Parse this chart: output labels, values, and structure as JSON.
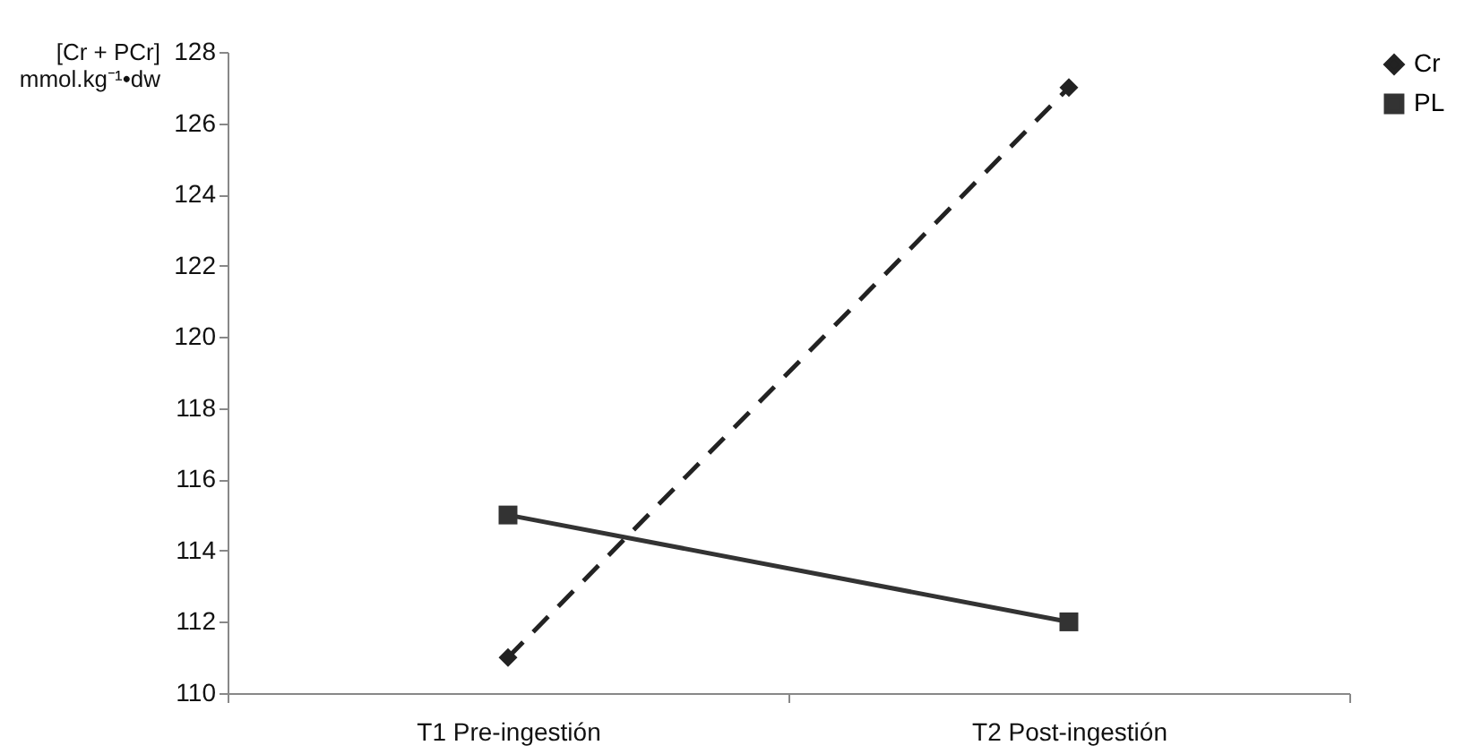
{
  "chart_data": {
    "type": "line",
    "ylabel": "[Cr + PCr]\nmmol.kg⁻¹•dw",
    "categories": [
      "T1 Pre-ingestión",
      "T2 Post-ingestión"
    ],
    "series": [
      {
        "name": "Cr",
        "color": "#222222",
        "values": [
          111,
          127
        ],
        "marker": "diamond",
        "line_style": "dashed"
      },
      {
        "name": "PL",
        "color": "#333333",
        "values": [
          115,
          112
        ],
        "marker": "square",
        "line_style": "solid"
      }
    ],
    "ylim": [
      110,
      128
    ],
    "yticks": [
      110,
      112,
      114,
      116,
      118,
      120,
      122,
      124,
      126,
      128
    ],
    "grid": false,
    "legend": "right"
  }
}
